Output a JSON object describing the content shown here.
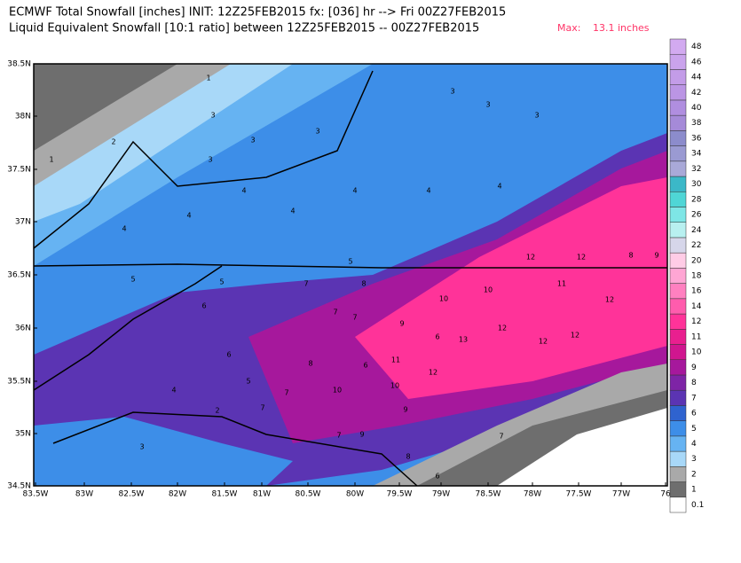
{
  "header": {
    "line1": "ECMWF Total Snowfall [inches] INIT: 12Z25FEB2015 fx: [036] hr --> Fri 00Z27FEB2015",
    "line2": "Liquid Equivalent Snowfall [10:1 ratio] between 12Z25FEB2015 -- 00Z27FEB2015",
    "max_label": "Max:",
    "max_value": "13.1 inches"
  },
  "map": {
    "lat_labels": [
      "38.5N",
      "38N",
      "37.5N",
      "37N",
      "36.5N",
      "36N",
      "35.5N",
      "35N",
      "34.5N"
    ],
    "lon_labels": [
      "83.5W",
      "83W",
      "82.5W",
      "82W",
      "81.5W",
      "81W",
      "80.5W",
      "80W",
      "79.5W",
      "79W",
      "78.5W",
      "78W",
      "77.5W",
      "77W",
      "76"
    ],
    "contour_labels": [
      "1",
      "2",
      "1",
      "3",
      "3",
      "3",
      "3",
      "4",
      "4",
      "4",
      "4",
      "4",
      "3",
      "3",
      "3",
      "4",
      "4",
      "5",
      "5",
      "5",
      "6",
      "6",
      "7",
      "7",
      "7",
      "8",
      "8",
      "9",
      "10",
      "10",
      "11",
      "12",
      "12",
      "12",
      "13",
      "12",
      "12",
      "11",
      "10",
      "9",
      "9",
      "8",
      "7",
      "6",
      "5",
      "4",
      "3",
      "2",
      "7",
      "7",
      "7",
      "6",
      "6",
      "8",
      "9",
      "10",
      "12",
      "12"
    ]
  },
  "colorbar": {
    "levels": [
      {
        "label": "0.1",
        "color": "#ffffff"
      },
      {
        "label": "1",
        "color": "#6e6e6e"
      },
      {
        "label": "2",
        "color": "#a9a9a9"
      },
      {
        "label": "3",
        "color": "#a8d8f8"
      },
      {
        "label": "4",
        "color": "#66b3f2"
      },
      {
        "label": "5",
        "color": "#3d8ee8"
      },
      {
        "label": "6",
        "color": "#2f63cf"
      },
      {
        "label": "7",
        "color": "#5b34b3"
      },
      {
        "label": "8",
        "color": "#7e24a6"
      },
      {
        "label": "9",
        "color": "#a6189c"
      },
      {
        "label": "10",
        "color": "#d0168f"
      },
      {
        "label": "11",
        "color": "#e91f8f"
      },
      {
        "label": "12",
        "color": "#ff3399"
      },
      {
        "label": "14",
        "color": "#ff5cad"
      },
      {
        "label": "16",
        "color": "#ff80c0"
      },
      {
        "label": "18",
        "color": "#ffa6d4"
      },
      {
        "label": "20",
        "color": "#ffcce6"
      },
      {
        "label": "22",
        "color": "#d6d6ea"
      },
      {
        "label": "24",
        "color": "#b8f0f0"
      },
      {
        "label": "26",
        "color": "#7ee6e6"
      },
      {
        "label": "28",
        "color": "#4fd6d6"
      },
      {
        "label": "30",
        "color": "#3bb8c8"
      },
      {
        "label": "32",
        "color": "#a9a9d8"
      },
      {
        "label": "34",
        "color": "#9a9ad2"
      },
      {
        "label": "36",
        "color": "#8c8ccc"
      },
      {
        "label": "38",
        "color": "#a58ad8"
      },
      {
        "label": "40",
        "color": "#b08ee0"
      },
      {
        "label": "42",
        "color": "#bb95e4"
      },
      {
        "label": "44",
        "color": "#c39ce8"
      },
      {
        "label": "46",
        "color": "#caa3ec"
      },
      {
        "label": "48",
        "color": "#d2aaf0"
      }
    ]
  }
}
